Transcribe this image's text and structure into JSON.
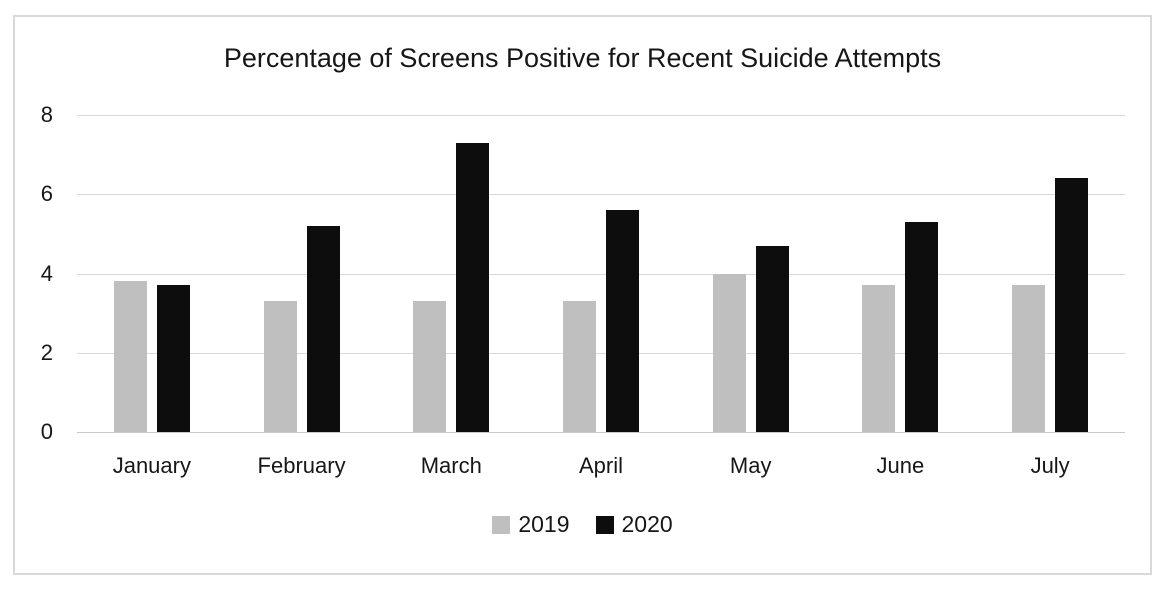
{
  "chart_data": {
    "type": "bar",
    "title": "Percentage of Screens Positive for Recent Suicide Attempts",
    "categories": [
      "January",
      "February",
      "March",
      "April",
      "May",
      "June",
      "July"
    ],
    "series": [
      {
        "name": "2019",
        "color": "#bfbfbf",
        "values": [
          3.8,
          3.3,
          3.3,
          3.3,
          4.0,
          3.7,
          3.7
        ]
      },
      {
        "name": "2020",
        "color": "#0d0d0d",
        "values": [
          3.7,
          5.2,
          7.3,
          5.6,
          4.7,
          5.3,
          6.4
        ]
      }
    ],
    "xlabel": "",
    "ylabel": "",
    "ylim": [
      0,
      8
    ],
    "yticks": [
      "0",
      "2",
      "4",
      "6",
      "8"
    ],
    "grid": true,
    "legend_position": "bottom",
    "colors": {
      "gridline": "#d9d9d9",
      "axis_line": "#c9c9c9",
      "frame_border": "#d9d9d9",
      "text": "#171717",
      "background": "#ffffff"
    }
  }
}
